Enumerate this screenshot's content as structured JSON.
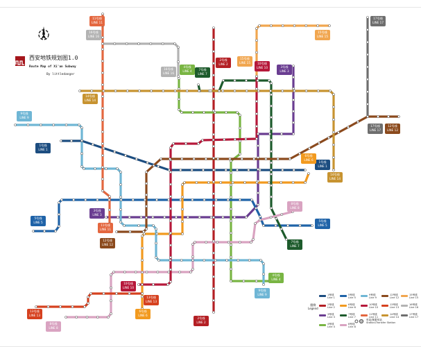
{
  "header": {
    "title_cn": "西安地铁规划图1.0",
    "title_en": "Route Map of Xi'an Subway",
    "author": "By littledanger"
  },
  "legend": {
    "title_cn": "图例",
    "title_en": "Legend",
    "station_label_cn": "车站/换乘车站",
    "station_label_en": "Station/Transfer Station"
  },
  "lines": [
    {
      "id": "1",
      "cn": "1号线",
      "en": "LINE 1",
      "legend": "Line 1",
      "color": "#1c4d80"
    },
    {
      "id": "2",
      "cn": "2号线",
      "en": "LINE 2",
      "legend": "Line 2",
      "color": "#b41f24"
    },
    {
      "id": "3",
      "cn": "3号线",
      "en": "LINE 3",
      "legend": "Line 3",
      "color": "#6a3d91"
    },
    {
      "id": "4",
      "cn": "4号线",
      "en": "LINE 4",
      "legend": "Line 4",
      "color": "#79b543"
    },
    {
      "id": "5",
      "cn": "5号线",
      "en": "LINE 5",
      "legend": "Line 5",
      "color": "#1f63a8"
    },
    {
      "id": "6",
      "cn": "6号线",
      "en": "LINE 6",
      "legend": "Line 6",
      "color": "#f29a1f"
    },
    {
      "id": "7",
      "cn": "7号线",
      "en": "LINE 7",
      "legend": "Line 7",
      "color": "#1d5b2c"
    },
    {
      "id": "8",
      "cn": "8号线",
      "en": "LINE 8",
      "legend": "Line 8",
      "color": "#d9a3c1"
    },
    {
      "id": "9",
      "cn": "9号线",
      "en": "LINE 9",
      "legend": "Line 9",
      "color": "#6fb6d5"
    },
    {
      "id": "10",
      "cn": "10号线",
      "en": "LINE 10",
      "legend": "Line 10",
      "color": "#b6183a"
    },
    {
      "id": "11",
      "cn": "11号线",
      "en": "LINE 11",
      "legend": "Line 11",
      "color": "#e4673f"
    },
    {
      "id": "12",
      "cn": "12号线",
      "en": "LINE 12",
      "legend": "Line 12",
      "color": "#8b4a1d"
    },
    {
      "id": "13",
      "cn": "13号线",
      "en": "LINE 13",
      "legend": "Line 13",
      "color": "#d6411f"
    },
    {
      "id": "14",
      "cn": "14号线",
      "en": "LINE 14",
      "legend": "Line 14",
      "color": "#c79330"
    },
    {
      "id": "15",
      "cn": "15号线",
      "en": "LINE 15",
      "legend": "Line 15",
      "color": "#f1a64f"
    },
    {
      "id": "16",
      "cn": "16号线",
      "en": "LINE 16",
      "legend": "Line 16",
      "color": "#b3b3b3"
    },
    {
      "id": "17",
      "cn": "17号线",
      "en": "LINE 17",
      "legend": "Line 17",
      "color": "#6e6e6e"
    }
  ]
}
